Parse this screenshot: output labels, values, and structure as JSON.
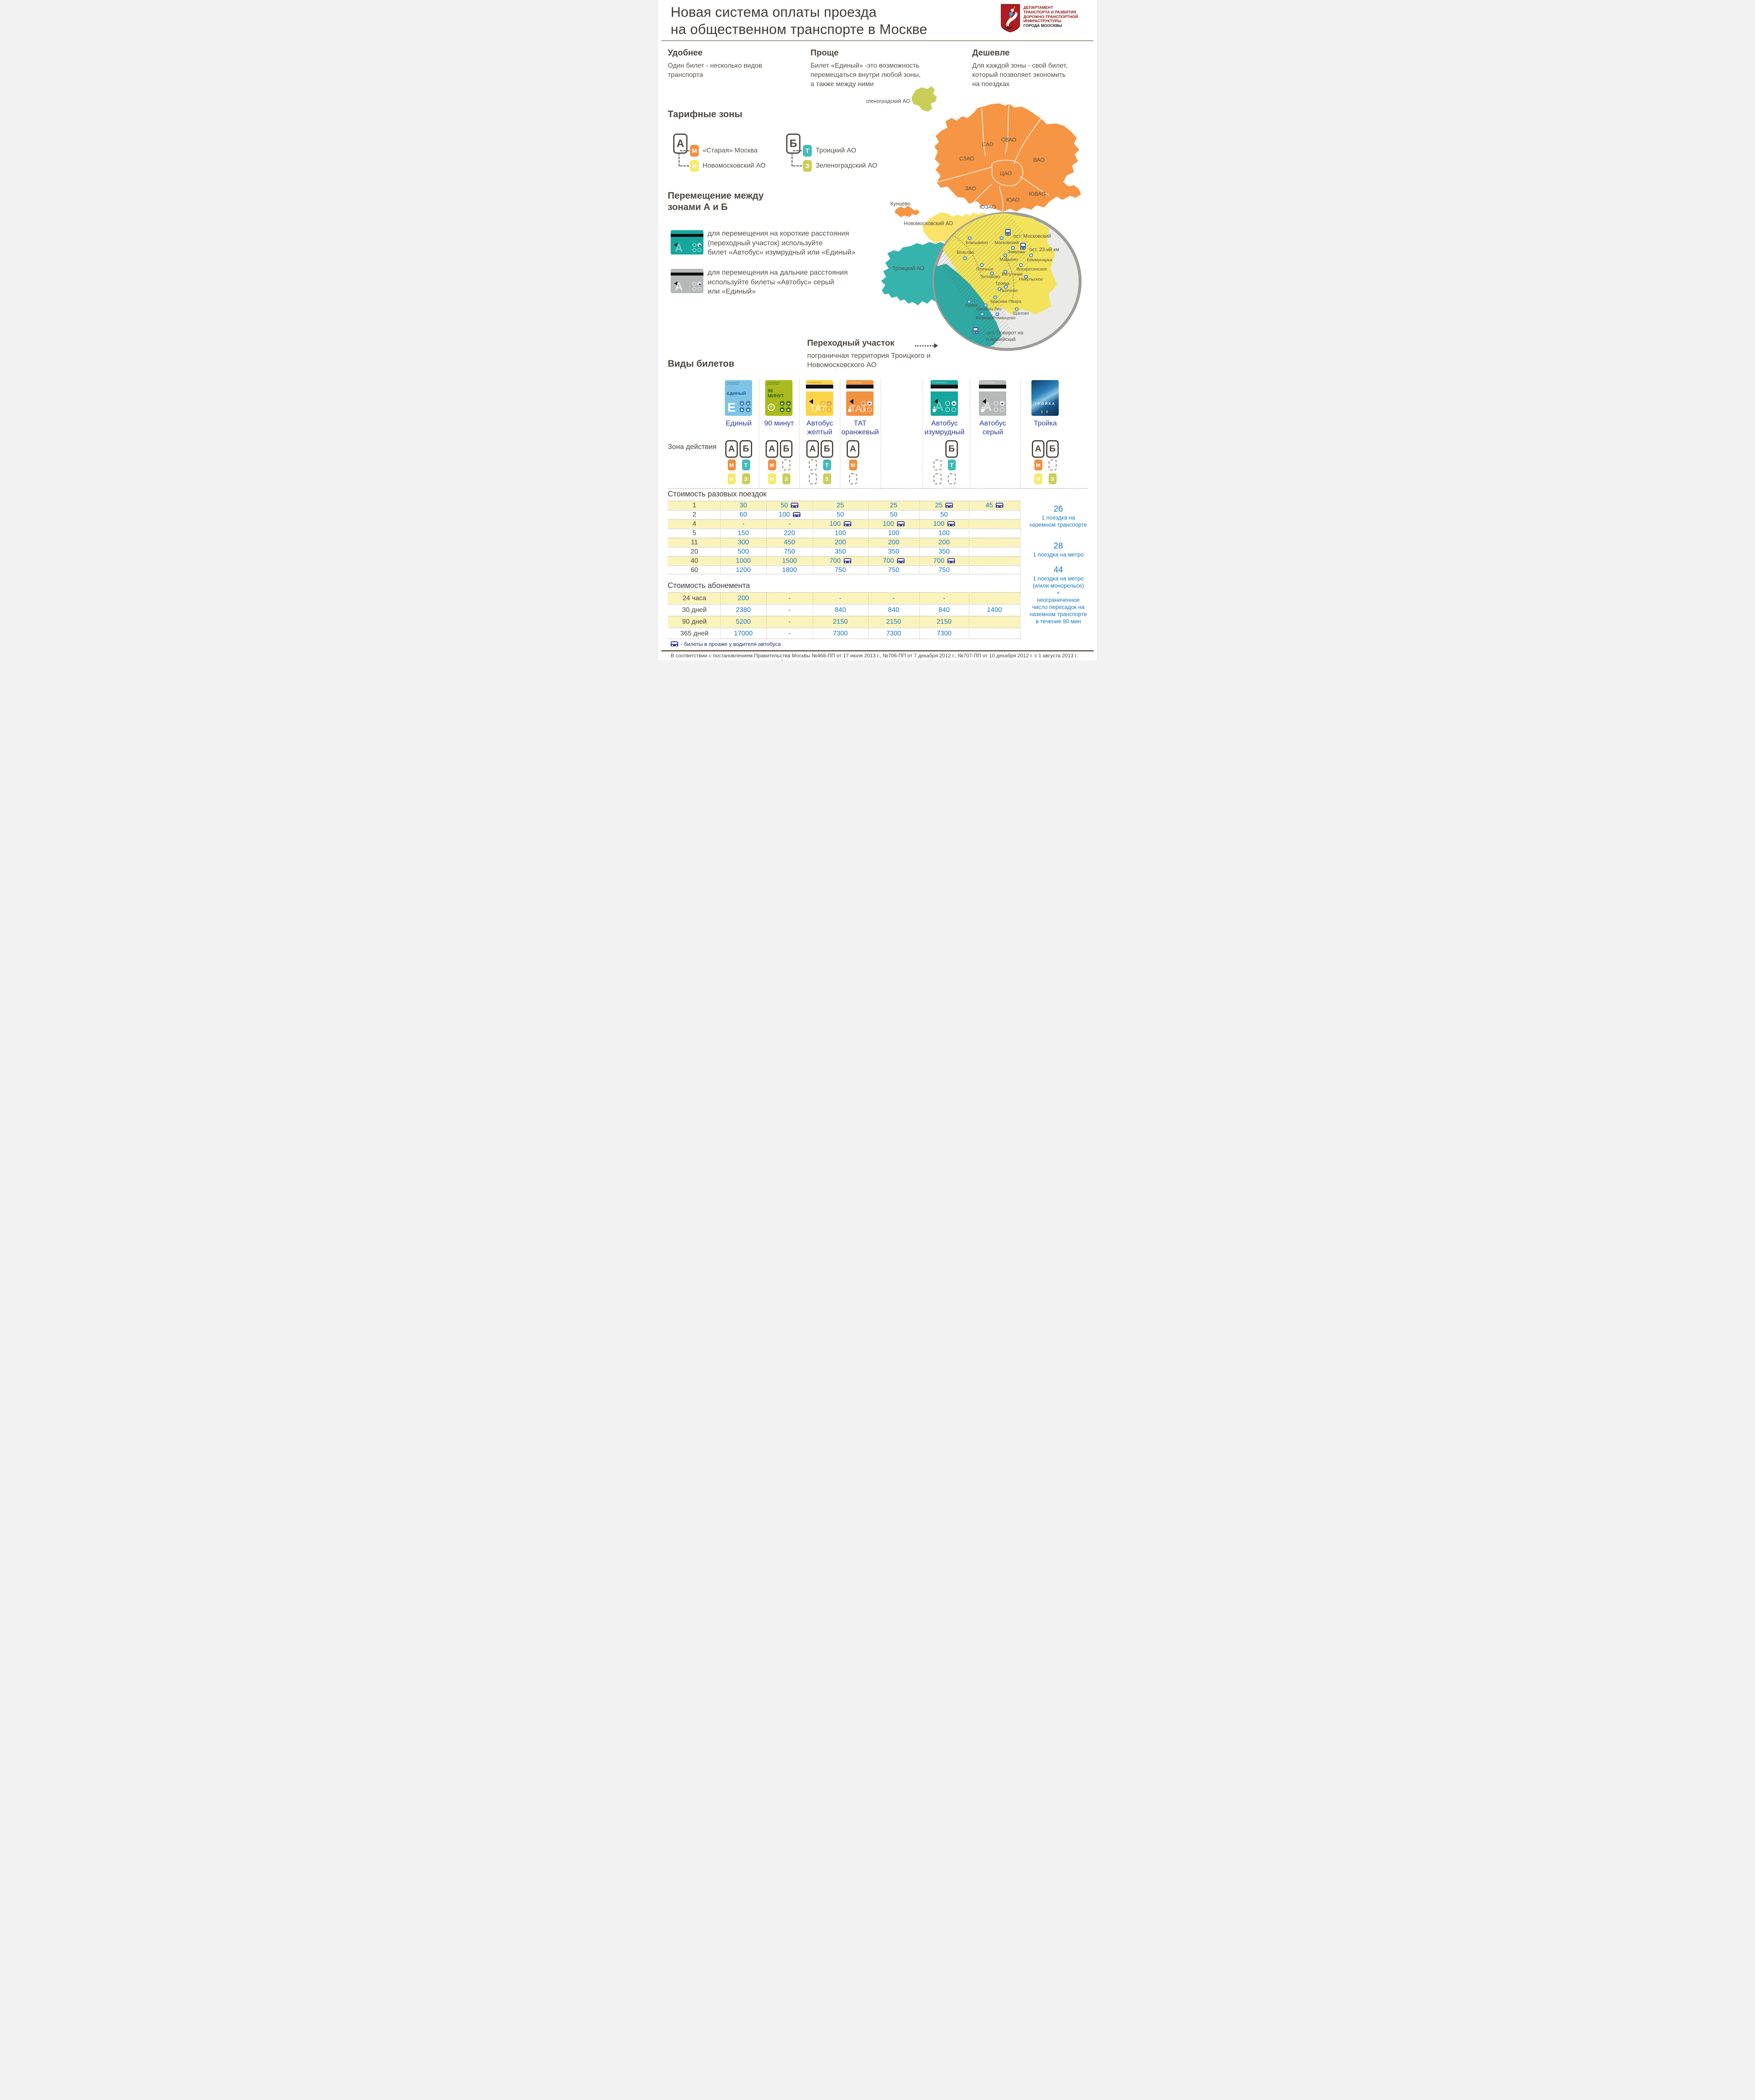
{
  "header": {
    "title": "Новая система оплаты проезда\nна общественном транспорте в Москве",
    "logo_lines": [
      "ДЕПАРТАМЕНТ",
      "ТРАНСПОРТА И РАЗВИТИЯ",
      "ДОРОЖНО-ТРАНСПОРТНОЙ",
      "ИНФРАСТРУКТУРЫ",
      "ГОРОДА МООСКВЫ"
    ]
  },
  "benefits": [
    {
      "title": "Удобнее",
      "text": "Один билет - несколько видов\nтранспорта"
    },
    {
      "title": "Проще",
      "text": "Билет «Единый» -это возможность\nперемещаться внутри любой зоны,\nа также между ними"
    },
    {
      "title": "Дешевле",
      "text": "Для каждой зоны - свой билет,\nкоторый позволяет экономить\nна поездках"
    }
  ],
  "tariff_zones": {
    "heading": "Тарифные зоны",
    "zone_a": {
      "badge": "А",
      "items": [
        {
          "letter": "М",
          "label": "«Старая» Москва"
        },
        {
          "letter": "Н",
          "label": "Новомосковский АО"
        }
      ]
    },
    "zone_b": {
      "badge": "Б",
      "items": [
        {
          "letter": "Т",
          "label": "Троицкий АО"
        },
        {
          "letter": "З",
          "label": "Зеленоградский АО"
        }
      ]
    }
  },
  "movement": {
    "heading": "Перемещение между\nзонами А и Б",
    "short": "для перемещения на короткие расстояния\n(переходный участок) используйте\nбилет «Автобус» изумрудный или «Единый»",
    "long": "для перемещения на дальние расстояния\nиспользуйте билеты «Автобус» серый\nили «Единый»"
  },
  "transition": {
    "heading": "Переходный участок",
    "text": "пограничная территория Троицкого и\nНовомосковского АО"
  },
  "map": {
    "zelenograd_label": "Зеленоградский АО",
    "kuntsevo": "Кунцево",
    "novomoskovsky": "Новомосковский АО",
    "troitsky": "Троицкий АО",
    "districts": [
      "САО",
      "СВАО",
      "СЗАО",
      "ВАО",
      "ЦАО",
      "ЗАО",
      "ЮВАО",
      "ЮАО",
      "ЮЗАО"
    ],
    "places": [
      "Кокошкино",
      "Московский",
      "Власово",
      "Зименки",
      "Марьино",
      "Коммунарка",
      "Птичное",
      "Воскресенское",
      "Ботаково",
      "Ватутинки",
      "Никульское",
      "Троицк",
      "Пыхчево",
      "Красная Пахра",
      "Лужки",
      "Шишкин Лес",
      "Щапово",
      "Исаково",
      "Романцево"
    ],
    "stops": [
      "ост. Московский",
      "ост. 23-ий км",
      "ост. Поворот на",
      "п.Армейский"
    ]
  },
  "tickets": {
    "heading": "Виды билетов",
    "zone_row_label": "Зона действия",
    "columns": [
      {
        "name": "Единый",
        "card_brand": "ГУП «МОСКОВСКИЙ МЕТРОПОЛИТЕН»",
        "card_big": "ЕДИНЫЙ",
        "card_letter": "Е"
      },
      {
        "name": "90 минут",
        "card_brand": "ГУП «МОСКОВСКИЙ МЕТРОПОЛИТЕН»",
        "card_big": "90\nМИНУТ"
      },
      {
        "name": "Автобус\nжелтый",
        "card_brand": "ГУП «МОСГОРТРАНС»",
        "card_big": "ТАТ"
      },
      {
        "name": "ТАТ\nоранжевый",
        "card_brand": "ГУП «МОСГОРТРАНС»",
        "card_big": "ТАТ"
      },
      {
        "name": "Автобус\nизумрудный",
        "card_brand": "ГУП «МОСГОРТРАНС»",
        "card_big": "А"
      },
      {
        "name": "Автобус\nсерый",
        "card_brand": "ГУП «МОСГОРТРАНС»",
        "card_big": "А"
      },
      {
        "name": "Тройка",
        "card_big": "ТРОЙКА"
      }
    ],
    "zones_matrix": [
      {
        "badges": [
          "А",
          "Б"
        ],
        "r1": [
          "М",
          "Т"
        ],
        "r2": [
          "Н",
          "З"
        ]
      },
      {
        "badges": [
          "А",
          "Б"
        ],
        "r1": [
          "М",
          "dash"
        ],
        "r2": [
          "Н",
          "З"
        ]
      },
      {
        "badges": [
          "А",
          "Б"
        ],
        "r1": [
          "dash",
          "Т"
        ],
        "r2": [
          "dash",
          "З"
        ]
      },
      {
        "badges": [
          "А",
          ""
        ],
        "r1": [
          "М",
          ""
        ],
        "r2": [
          "dash",
          ""
        ]
      },
      {
        "badges": [
          "",
          "Б"
        ],
        "r1": [
          "dash",
          "Т"
        ],
        "r2": [
          "dash",
          "dash"
        ]
      },
      {
        "badges": [
          "",
          ""
        ],
        "r1": [
          "",
          ""
        ],
        "r2": [
          "",
          ""
        ]
      },
      {
        "badges": [
          "А",
          "Б"
        ],
        "r1": [
          "М",
          "dash"
        ],
        "r2": [
          "Н",
          "З"
        ]
      }
    ]
  },
  "single_table": {
    "heading": "Стоимость разовых поездок",
    "rows": [
      {
        "trips": "1",
        "values": [
          {
            "v": "30"
          },
          {
            "v": "50",
            "bus": true
          },
          {
            "v": "25"
          },
          {
            "v": "25"
          },
          {
            "v": "25",
            "bus": true
          },
          {
            "v": "45",
            "bus": true
          }
        ]
      },
      {
        "trips": "2",
        "values": [
          {
            "v": "60"
          },
          {
            "v": "100",
            "bus": true
          },
          {
            "v": "50"
          },
          {
            "v": "50"
          },
          {
            "v": "50"
          },
          {
            "v": ""
          }
        ]
      },
      {
        "trips": "4",
        "values": [
          {
            "v": "-"
          },
          {
            "v": "-"
          },
          {
            "v": "100",
            "bus": true
          },
          {
            "v": "100",
            "bus": true
          },
          {
            "v": "100",
            "bus": true
          },
          {
            "v": ""
          }
        ]
      },
      {
        "trips": "5",
        "values": [
          {
            "v": "150"
          },
          {
            "v": "220"
          },
          {
            "v": "100"
          },
          {
            "v": "100"
          },
          {
            "v": "100"
          },
          {
            "v": ""
          }
        ]
      },
      {
        "trips": "11",
        "values": [
          {
            "v": "300"
          },
          {
            "v": "450"
          },
          {
            "v": "200"
          },
          {
            "v": "200"
          },
          {
            "v": "200"
          },
          {
            "v": ""
          }
        ]
      },
      {
        "trips": "20",
        "values": [
          {
            "v": "500"
          },
          {
            "v": "750"
          },
          {
            "v": "350"
          },
          {
            "v": "350"
          },
          {
            "v": "350"
          },
          {
            "v": ""
          }
        ]
      },
      {
        "trips": "40",
        "values": [
          {
            "v": "1000"
          },
          {
            "v": "1500"
          },
          {
            "v": "700",
            "bus": true
          },
          {
            "v": "700",
            "bus": true
          },
          {
            "v": "700",
            "bus": true
          },
          {
            "v": ""
          }
        ]
      },
      {
        "trips": "60",
        "values": [
          {
            "v": "1200"
          },
          {
            "v": "1800"
          },
          {
            "v": "750"
          },
          {
            "v": "750"
          },
          {
            "v": "750"
          },
          {
            "v": ""
          }
        ]
      }
    ]
  },
  "notes": [
    {
      "big": "26",
      "text": "1 поездка на\nназемном транспорте"
    },
    {
      "big": "28",
      "text": "1 поездка на метро"
    },
    {
      "big": "44",
      "text": "1 поездка на метро\n(и/или монорельсе)\n+\nнеограниченное\nчисло пересадок на\nназемном транспорте\nв течение 90 мин"
    }
  ],
  "season_table": {
    "heading": "Стоимость абонемента",
    "rows": [
      {
        "period": "24 часа",
        "values": [
          "200",
          "-",
          "-",
          "-",
          "-",
          ""
        ]
      },
      {
        "period": "30 дней",
        "values": [
          "2380",
          "-",
          "840",
          "840",
          "840",
          "1400"
        ]
      },
      {
        "period": "90 дней",
        "values": [
          "5200",
          "-",
          "2150",
          "2150",
          "2150",
          ""
        ]
      },
      {
        "period": "365 дней",
        "values": [
          "17000",
          "-",
          "7300",
          "7300",
          "7300",
          ""
        ]
      }
    ]
  },
  "footnote": "- билеты в проаже у водителя автобуса",
  "footer": "В соответствии с постановлением Правительства Москвы №468-ПП от 17 июля 2013 г., №706-ПП от 7 декабря 2012 г., №707-ПП от 10 декабря 2012 г. с 1 августа 2013 г.\nизменения в тарифную систему проезда на общественном транспорте на присоединенных территориях г. Москвы.",
  "colors": {
    "zone_m_orange": "#F28E3D",
    "zone_n_yellow": "#F5EB69",
    "zone_t_teal": "#43BCBB",
    "zone_z_olive": "#C9CE58",
    "price_blue": "#1878BF",
    "ticket_label_blue": "#2C3E94",
    "logo_red": "#8C1713",
    "row_yellow": "#FAF3BC"
  }
}
